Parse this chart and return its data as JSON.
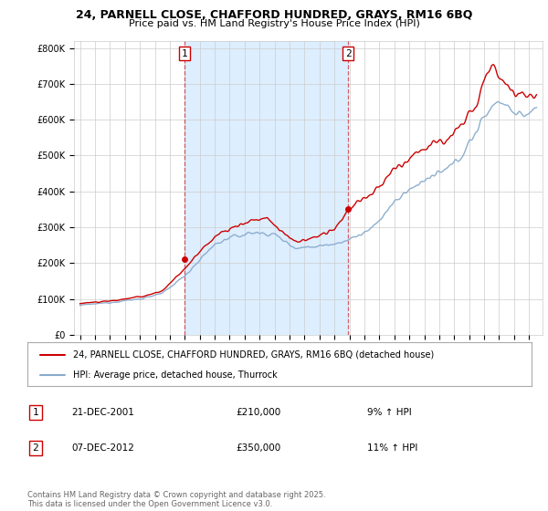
{
  "title_line1": "24, PARNELL CLOSE, CHAFFORD HUNDRED, GRAYS, RM16 6BQ",
  "title_line2": "Price paid vs. HM Land Registry's House Price Index (HPI)",
  "ytick_labels": [
    "£0",
    "£100K",
    "£200K",
    "£300K",
    "£400K",
    "£500K",
    "£600K",
    "£700K",
    "£800K"
  ],
  "yticks": [
    0,
    100000,
    200000,
    300000,
    400000,
    500000,
    600000,
    700000,
    800000
  ],
  "ylim": [
    0,
    820000
  ],
  "xlim_left": 1994.6,
  "xlim_right": 2025.9,
  "legend_label_red": "24, PARNELL CLOSE, CHAFFORD HUNDRED, GRAYS, RM16 6BQ (detached house)",
  "legend_label_blue": "HPI: Average price, detached house, Thurrock",
  "annotation1_date": "21-DEC-2001",
  "annotation1_price": "£210,000",
  "annotation1_hpi": "9% ↑ HPI",
  "annotation2_date": "07-DEC-2012",
  "annotation2_price": "£350,000",
  "annotation2_hpi": "11% ↑ HPI",
  "footnote": "Contains HM Land Registry data © Crown copyright and database right 2025.\nThis data is licensed under the Open Government Licence v3.0.",
  "red_color": "#cc0000",
  "blue_color": "#88aacc",
  "shade_color": "#ddeeff",
  "grid_color": "#cccccc",
  "bg_color": "#ffffff",
  "sale1_x": 2001.97,
  "sale1_y": 210000,
  "sale2_x": 2012.92,
  "sale2_y": 350000,
  "title_fontsize": 9,
  "subtitle_fontsize": 8,
  "tick_fontsize": 7,
  "legend_fontsize": 7,
  "annot_fontsize": 7.5,
  "footnote_fontsize": 6
}
